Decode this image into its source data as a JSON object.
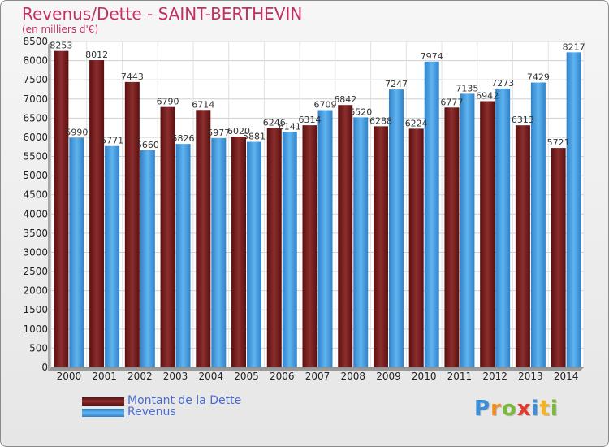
{
  "chart_data": {
    "type": "bar",
    "title": "Revenus/Dette - SAINT-BERTHEVIN",
    "subtitle": "(en milliers d'€)",
    "categories": [
      "2000",
      "2001",
      "2002",
      "2003",
      "2004",
      "2005",
      "2006",
      "2007",
      "2008",
      "2009",
      "2010",
      "2011",
      "2012",
      "2013",
      "2014"
    ],
    "series": [
      {
        "name": "Montant de la Dette",
        "color": "#7a1f1f",
        "values": [
          8253,
          8012,
          7443,
          6790,
          6714,
          6020,
          6246,
          6314,
          6842,
          6288,
          6224,
          6777,
          6942,
          6313,
          5721
        ]
      },
      {
        "name": "Revenus",
        "color": "#4da3e6",
        "values": [
          5990,
          5771,
          5660,
          5826,
          5977,
          5881,
          6141,
          6709,
          6520,
          7247,
          7974,
          7135,
          7273,
          7429,
          8217
        ]
      }
    ],
    "y_ticks": [
      0,
      500,
      1000,
      1500,
      2000,
      2500,
      3000,
      3500,
      4000,
      4500,
      5000,
      5500,
      6000,
      6500,
      7000,
      7500,
      8000,
      8500
    ],
    "ylim": [
      0,
      8500
    ],
    "grid": true,
    "legend_position": "bottom-left"
  },
  "logo_text": "Proxiti"
}
